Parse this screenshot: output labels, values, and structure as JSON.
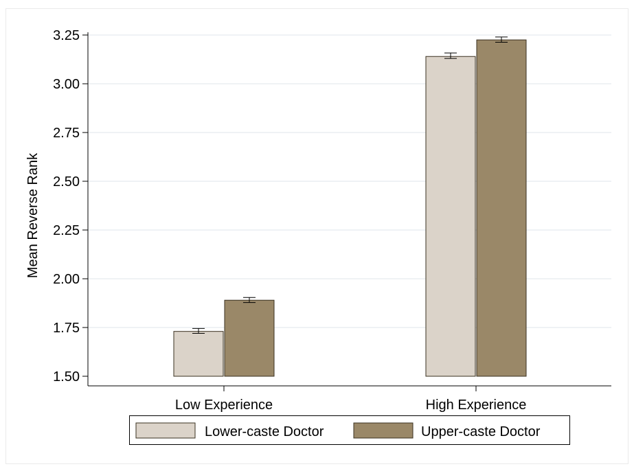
{
  "chart_data": {
    "type": "bar",
    "title": "",
    "xlabel": "",
    "ylabel": "Mean Reverse Rank",
    "ylim": [
      1.5,
      3.25
    ],
    "yticks": [
      1.5,
      1.75,
      2.0,
      2.25,
      2.5,
      2.75,
      3.0,
      3.25
    ],
    "ytick_labels": [
      "1.50",
      "1.75",
      "2.00",
      "2.25",
      "2.50",
      "2.75",
      "3.00",
      "3.25"
    ],
    "grid": true,
    "legend_position": "bottom",
    "categories": [
      "Low Experience",
      "High Experience"
    ],
    "series": [
      {
        "name": "Lower-caste Doctor",
        "color": "#dbd3c9",
        "values": [
          1.73,
          3.14
        ],
        "error_low": [
          1.72,
          3.13
        ],
        "error_high": [
          1.745,
          3.158
        ]
      },
      {
        "name": "Upper-caste Doctor",
        "color": "#9a8868",
        "values": [
          1.89,
          3.225
        ],
        "error_low": [
          1.878,
          3.213
        ],
        "error_high": [
          1.904,
          3.24
        ]
      }
    ]
  }
}
